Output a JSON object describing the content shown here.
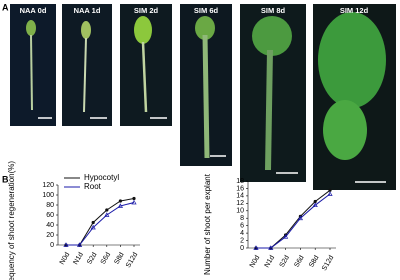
{
  "panels": {
    "A": "A",
    "B": "B",
    "photos": [
      "NAA 0d",
      "NAA 1d",
      "SIM 2d",
      "SIM 6d",
      "SIM 8d",
      "SIM 12d"
    ]
  },
  "chart_data": [
    {
      "type": "line",
      "ylabel": "Frequency of shoot regeneration(%)",
      "categories": [
        "N0d",
        "N1d",
        "S2d",
        "S6d",
        "S8d",
        "S12d"
      ],
      "series": [
        {
          "name": "Hypocotyl",
          "color": "#111111",
          "values": [
            0,
            0,
            45,
            70,
            88,
            93
          ]
        },
        {
          "name": "Root",
          "color": "#1a1aa8",
          "values": [
            0,
            0,
            35,
            60,
            78,
            85
          ]
        }
      ],
      "ylim": [
        0,
        120
      ],
      "yticks": [
        0,
        20,
        40,
        60,
        80,
        100,
        120
      ],
      "legend": "top-left"
    },
    {
      "type": "line",
      "ylabel": "Number of shoot per explant",
      "categories": [
        "N0d",
        "N1d",
        "S2d",
        "S6d",
        "S8d",
        "S12d"
      ],
      "series": [
        {
          "color": "#111111",
          "values": [
            0,
            0,
            3.5,
            8.5,
            12.5,
            15.5
          ]
        },
        {
          "color": "#1a1aa8",
          "values": [
            0,
            0,
            3,
            8,
            11.5,
            14.5
          ]
        }
      ],
      "ylim": [
        0,
        18
      ],
      "yticks": [
        0,
        2,
        4,
        6,
        8,
        10,
        12,
        14,
        16,
        18
      ]
    }
  ]
}
